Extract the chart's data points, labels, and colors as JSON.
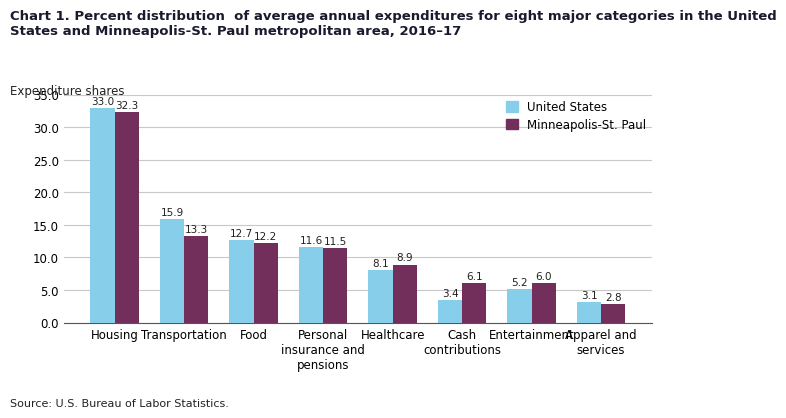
{
  "title_line1": "Chart 1. Percent distribution  of average annual expenditures for eight major categories in the United",
  "title_line2": "States and Minneapolis-St. Paul metropolitan area, 2016–17",
  "ylabel": "Expenditure shares",
  "categories": [
    "Housing",
    "Transportation",
    "Food",
    "Personal\ninsurance and\npensions",
    "Healthcare",
    "Cash\ncontributions",
    "Entertainment",
    "Apparel and\nservices"
  ],
  "us_values": [
    33.0,
    15.9,
    12.7,
    11.6,
    8.1,
    3.4,
    5.2,
    3.1
  ],
  "msp_values": [
    32.3,
    13.3,
    12.2,
    11.5,
    8.9,
    6.1,
    6.0,
    2.8
  ],
  "us_color": "#87CEEB",
  "msp_color": "#722F5B",
  "ylim": [
    0,
    35
  ],
  "yticks": [
    0.0,
    5.0,
    10.0,
    15.0,
    20.0,
    25.0,
    30.0,
    35.0
  ],
  "legend_us": "United States",
  "legend_msp": "Minneapolis-St. Paul",
  "source": "Source: U.S. Bureau of Labor Statistics.",
  "bar_width": 0.35,
  "title_fontsize": 9.5,
  "axis_label_fontsize": 8.5,
  "tick_fontsize": 8.5,
  "value_fontsize": 7.5,
  "legend_fontsize": 8.5,
  "source_fontsize": 8,
  "background_color": "#ffffff",
  "grid_color": "#c8c8c8"
}
